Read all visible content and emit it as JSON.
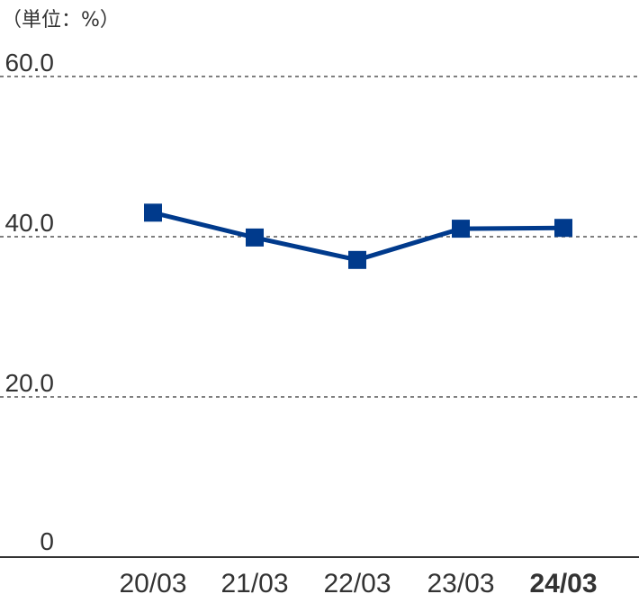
{
  "chart_data": {
    "type": "line",
    "unit_label": "（単位：%）",
    "categories": [
      "20/03",
      "21/03",
      "22/03",
      "23/03",
      "24/03"
    ],
    "highlight_category": "24/03",
    "series": [
      {
        "values": [
          43.0,
          39.9,
          37.1,
          41.0,
          41.1
        ]
      }
    ],
    "ylim": [
      0,
      60
    ],
    "yticks": [
      {
        "value": 0,
        "label": "0"
      },
      {
        "value": 20,
        "label": "20.0"
      },
      {
        "value": 40,
        "label": "40.0"
      },
      {
        "value": 60,
        "label": "60.0"
      }
    ],
    "grid": true,
    "line_color": "#003A8C",
    "grid_color": "#555555",
    "text_color": "#333333"
  }
}
